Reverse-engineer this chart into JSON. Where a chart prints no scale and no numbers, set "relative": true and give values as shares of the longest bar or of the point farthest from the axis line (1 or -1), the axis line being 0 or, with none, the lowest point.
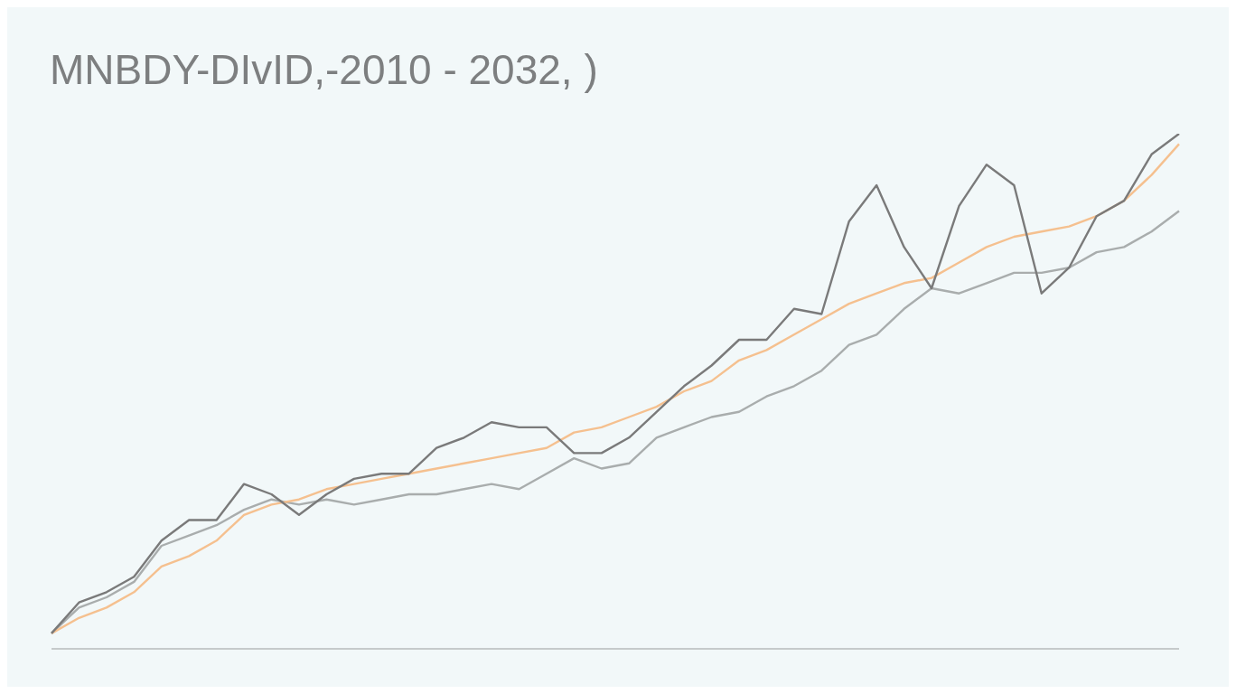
{
  "chart_data": {
    "type": "line",
    "title": "MNBDY-DIvID,-2010 - 2032, )",
    "relative": true,
    "marker": "none",
    "line_style": "solid",
    "categories": [
      null,
      null,
      null,
      null,
      null,
      null,
      null,
      null,
      null,
      null,
      null,
      null,
      null,
      null,
      null,
      null,
      null,
      null,
      null,
      null,
      null,
      null,
      null,
      null,
      null,
      null,
      null,
      null,
      null,
      null,
      null,
      null,
      null,
      null,
      null,
      null,
      null,
      null,
      null,
      null,
      null,
      null
    ],
    "series": [
      {
        "color": "#a9adad",
        "values": [
          0.03,
          0.08,
          0.1,
          0.13,
          0.2,
          0.22,
          0.24,
          0.27,
          0.29,
          0.28,
          0.29,
          0.28,
          0.29,
          0.3,
          0.3,
          0.31,
          0.32,
          0.31,
          0.34,
          0.37,
          0.35,
          0.36,
          0.41,
          0.43,
          0.45,
          0.46,
          0.49,
          0.51,
          0.54,
          0.59,
          0.61,
          0.66,
          0.7,
          0.69,
          0.71,
          0.73,
          0.73,
          0.74,
          0.77,
          0.78,
          0.81,
          0.85
        ]
      },
      {
        "color": "#f5c08f",
        "values": [
          0.03,
          0.06,
          0.08,
          0.11,
          0.16,
          0.18,
          0.21,
          0.26,
          0.28,
          0.29,
          0.31,
          0.32,
          0.33,
          0.34,
          0.35,
          0.36,
          0.37,
          0.38,
          0.39,
          0.42,
          0.43,
          0.45,
          0.47,
          0.5,
          0.52,
          0.56,
          0.58,
          0.61,
          0.64,
          0.67,
          0.69,
          0.71,
          0.72,
          0.75,
          0.78,
          0.8,
          0.81,
          0.82,
          0.84,
          0.87,
          0.92,
          0.98
        ]
      },
      {
        "color": "#7a7a7a",
        "values": [
          0.03,
          0.09,
          0.11,
          0.14,
          0.21,
          0.25,
          0.25,
          0.32,
          0.3,
          0.26,
          0.3,
          0.33,
          0.34,
          0.34,
          0.39,
          0.41,
          0.44,
          0.43,
          0.43,
          0.38,
          0.38,
          0.41,
          0.46,
          0.51,
          0.55,
          0.6,
          0.6,
          0.66,
          0.65,
          0.83,
          0.9,
          0.78,
          0.7,
          0.86,
          0.94,
          0.9,
          0.69,
          0.74,
          0.84,
          0.87,
          0.96,
          1
        ]
      }
    ]
  }
}
